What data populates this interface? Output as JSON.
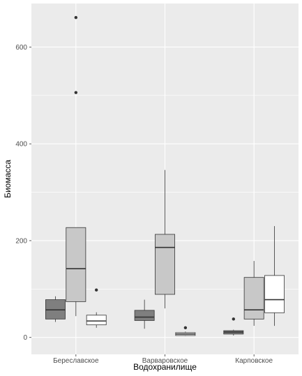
{
  "chart_data": {
    "type": "boxplot",
    "xlabel": "Водохранилище",
    "ylabel": "Биомасса",
    "categories": [
      "Береславское",
      "Варваровское",
      "Карповское"
    ],
    "y_ticks": [
      0,
      200,
      400,
      600
    ],
    "ylim": [
      -35,
      690
    ],
    "grid": true,
    "legend": "none",
    "series_colors": [
      "#7f7f7f",
      "#c8c8c8",
      "#ffffff"
    ],
    "panel_background": "#ebebeb",
    "grid_color": "#ffffff",
    "boxes": [
      {
        "category": "Береславское",
        "series": 0,
        "whisker_low": 32,
        "q1": 38,
        "median": 57,
        "q3": 78,
        "whisker_high": 85,
        "outliers": []
      },
      {
        "category": "Береславское",
        "series": 1,
        "whisker_low": 44,
        "q1": 74,
        "median": 142,
        "q3": 227,
        "whisker_high": 227,
        "outliers": [
          506,
          661
        ]
      },
      {
        "category": "Береславское",
        "series": 2,
        "whisker_low": 20,
        "q1": 26,
        "median": 34,
        "q3": 46,
        "whisker_high": 52,
        "outliers": [
          98
        ]
      },
      {
        "category": "Варваровское",
        "series": 0,
        "whisker_low": 18,
        "q1": 35,
        "median": 42,
        "q3": 56,
        "whisker_high": 78,
        "outliers": []
      },
      {
        "category": "Варваровское",
        "series": 1,
        "whisker_low": 60,
        "q1": 89,
        "median": 186,
        "q3": 213,
        "whisker_high": 346,
        "outliers": []
      },
      {
        "category": "Варваровское",
        "series": 2,
        "whisker_low": 3,
        "q1": 4,
        "median": 7,
        "q3": 10,
        "whisker_high": 12,
        "outliers": [
          20
        ]
      },
      {
        "category": "Карповское",
        "series": 0,
        "whisker_low": 4,
        "q1": 7,
        "median": 11,
        "q3": 14,
        "whisker_high": 16,
        "outliers": [
          38
        ]
      },
      {
        "category": "Карповское",
        "series": 1,
        "whisker_low": 24,
        "q1": 38,
        "median": 57,
        "q3": 124,
        "whisker_high": 158,
        "outliers": []
      },
      {
        "category": "Карповское",
        "series": 2,
        "whisker_low": 24,
        "q1": 51,
        "median": 78,
        "q3": 128,
        "whisker_high": 230,
        "outliers": []
      }
    ]
  }
}
